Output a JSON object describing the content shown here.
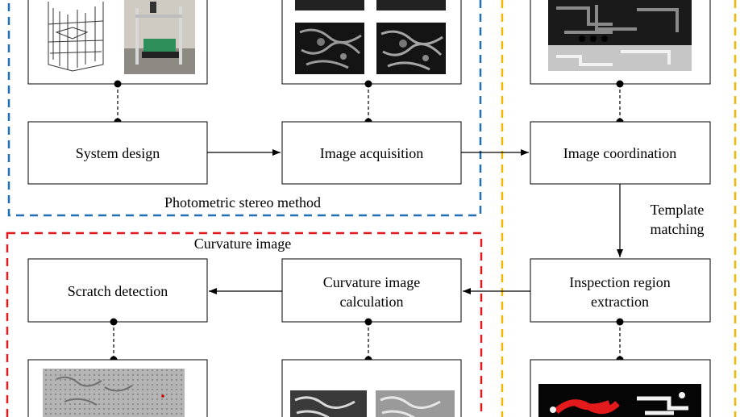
{
  "boxes": {
    "system_design": "System design",
    "image_acquisition": "Image acquisition",
    "image_coordination": "Image coordination",
    "inspection_region": [
      "Inspection region",
      "extraction"
    ],
    "curvature_calc": [
      "Curvature image",
      "calculation"
    ],
    "scratch_detection": "Scratch detection"
  },
  "group_labels": {
    "photometric": "Photometric stereo method",
    "curvature": "Curvature image"
  },
  "edge_labels": {
    "template_matching": [
      "Template",
      "matching"
    ]
  },
  "colors": {
    "blue_group": "#1f6fb2",
    "red_group": "#e31a1c",
    "yellow_group": "#f2b705",
    "scratch_mark": "#d40000"
  }
}
